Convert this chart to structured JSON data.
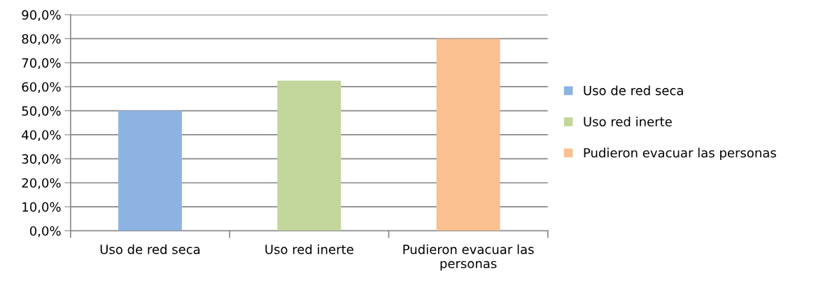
{
  "chart_data": {
    "type": "bar",
    "categories": [
      "Uso de red seca",
      "Uso red inerte",
      "Pudieron evacuar las personas"
    ],
    "series": [
      {
        "name": "Uso de red seca",
        "color": "#8db3e2",
        "values": [
          50.0,
          null,
          null
        ]
      },
      {
        "name": "Uso red inerte",
        "color": "#c3d69b",
        "values": [
          null,
          62.5,
          null
        ]
      },
      {
        "name": "Pudieron evacuar las personas",
        "color": "#fac090",
        "values": [
          null,
          null,
          80.0
        ]
      }
    ],
    "ylim": [
      0,
      90
    ],
    "yticks": [
      {
        "value": 0,
        "label": "0,0%"
      },
      {
        "value": 10,
        "label": "10,0%"
      },
      {
        "value": 20,
        "label": "20,0%"
      },
      {
        "value": 30,
        "label": "30,0%"
      },
      {
        "value": 40,
        "label": "40,0%"
      },
      {
        "value": 50,
        "label": "50,0%"
      },
      {
        "value": 60,
        "label": "60,0%"
      },
      {
        "value": 70,
        "label": "70,0%"
      },
      {
        "value": 80,
        "label": "80,0%"
      },
      {
        "value": 90,
        "label": "90,0%"
      }
    ],
    "grid": "y",
    "legend": "right"
  }
}
